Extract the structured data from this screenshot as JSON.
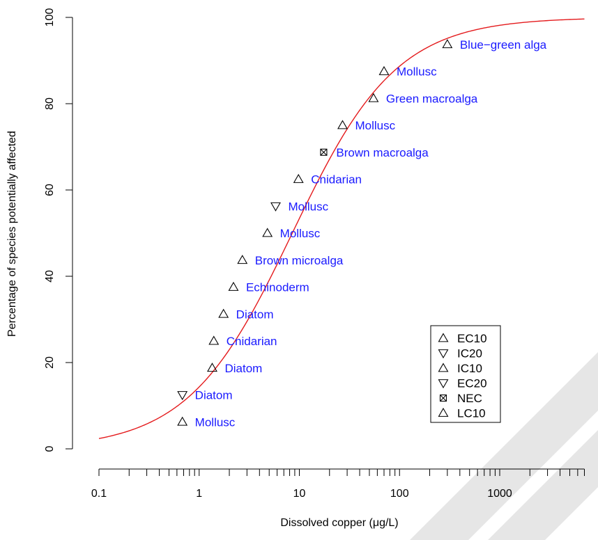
{
  "chart_data": {
    "type": "scatter",
    "x_scale": "log",
    "xlabel": "Dissolved copper (μg/L)",
    "ylabel": "Percentage of species potentially affected",
    "xlim": [
      0.1,
      7000
    ],
    "ylim": [
      0,
      100
    ],
    "x_ticks": [
      {
        "value": 0.1,
        "label": "0.1"
      },
      {
        "value": 1,
        "label": "1"
      },
      {
        "value": 10,
        "label": "10"
      },
      {
        "value": 100,
        "label": "100"
      },
      {
        "value": 1000,
        "label": "1000"
      }
    ],
    "y_ticks": [
      {
        "value": 0,
        "label": "0"
      },
      {
        "value": 20,
        "label": "20"
      },
      {
        "value": 40,
        "label": "40"
      },
      {
        "value": 60,
        "label": "60"
      },
      {
        "value": 80,
        "label": "80"
      },
      {
        "value": 100,
        "label": "100"
      }
    ],
    "grid": false,
    "curve": {
      "color": "#e41a1c",
      "model": "log-logistic",
      "ec50": 8.5,
      "slope_log10": 0.52
    },
    "points": [
      {
        "x": 0.68,
        "y": 6.25,
        "species": "Mollusc",
        "endpoint": "EC10"
      },
      {
        "x": 0.68,
        "y": 12.5,
        "species": "Diatom",
        "endpoint": "IC20"
      },
      {
        "x": 1.35,
        "y": 18.75,
        "species": "Diatom",
        "endpoint": "IC10"
      },
      {
        "x": 1.4,
        "y": 25.0,
        "species": "Cnidarian",
        "endpoint": "EC10"
      },
      {
        "x": 1.75,
        "y": 31.25,
        "species": "Diatom",
        "endpoint": "IC10"
      },
      {
        "x": 2.2,
        "y": 37.5,
        "species": "Echinoderm",
        "endpoint": "EC10"
      },
      {
        "x": 2.7,
        "y": 43.75,
        "species": "Brown microalga",
        "endpoint": "IC10"
      },
      {
        "x": 4.8,
        "y": 50.0,
        "species": "Mollusc",
        "endpoint": "EC10"
      },
      {
        "x": 5.8,
        "y": 56.25,
        "species": "Mollusc",
        "endpoint": "EC20"
      },
      {
        "x": 9.8,
        "y": 62.5,
        "species": "Cnidarian",
        "endpoint": "EC10"
      },
      {
        "x": 17.5,
        "y": 68.75,
        "species": "Brown macroalga",
        "endpoint": "NEC"
      },
      {
        "x": 27.0,
        "y": 75.0,
        "species": "Mollusc",
        "endpoint": "EC10"
      },
      {
        "x": 55.0,
        "y": 81.25,
        "species": "Green macroalga",
        "endpoint": "EC10"
      },
      {
        "x": 70.0,
        "y": 87.5,
        "species": "Mollusc",
        "endpoint": "EC10"
      },
      {
        "x": 300.0,
        "y": 93.75,
        "species": "Blue−green alga",
        "endpoint": "IC10"
      }
    ],
    "legend": {
      "placement": "bottom-right",
      "entries": [
        {
          "label": "EC10",
          "marker": "triangle-up"
        },
        {
          "label": "IC20",
          "marker": "triangle-down"
        },
        {
          "label": "IC10",
          "marker": "triangle-up"
        },
        {
          "label": "EC20",
          "marker": "triangle-down"
        },
        {
          "label": "NEC",
          "marker": "boxed-x"
        },
        {
          "label": "LC10",
          "marker": "triangle-up"
        }
      ]
    },
    "label_color": "#1a1aff",
    "watermark_color": "#e6e6e6"
  }
}
